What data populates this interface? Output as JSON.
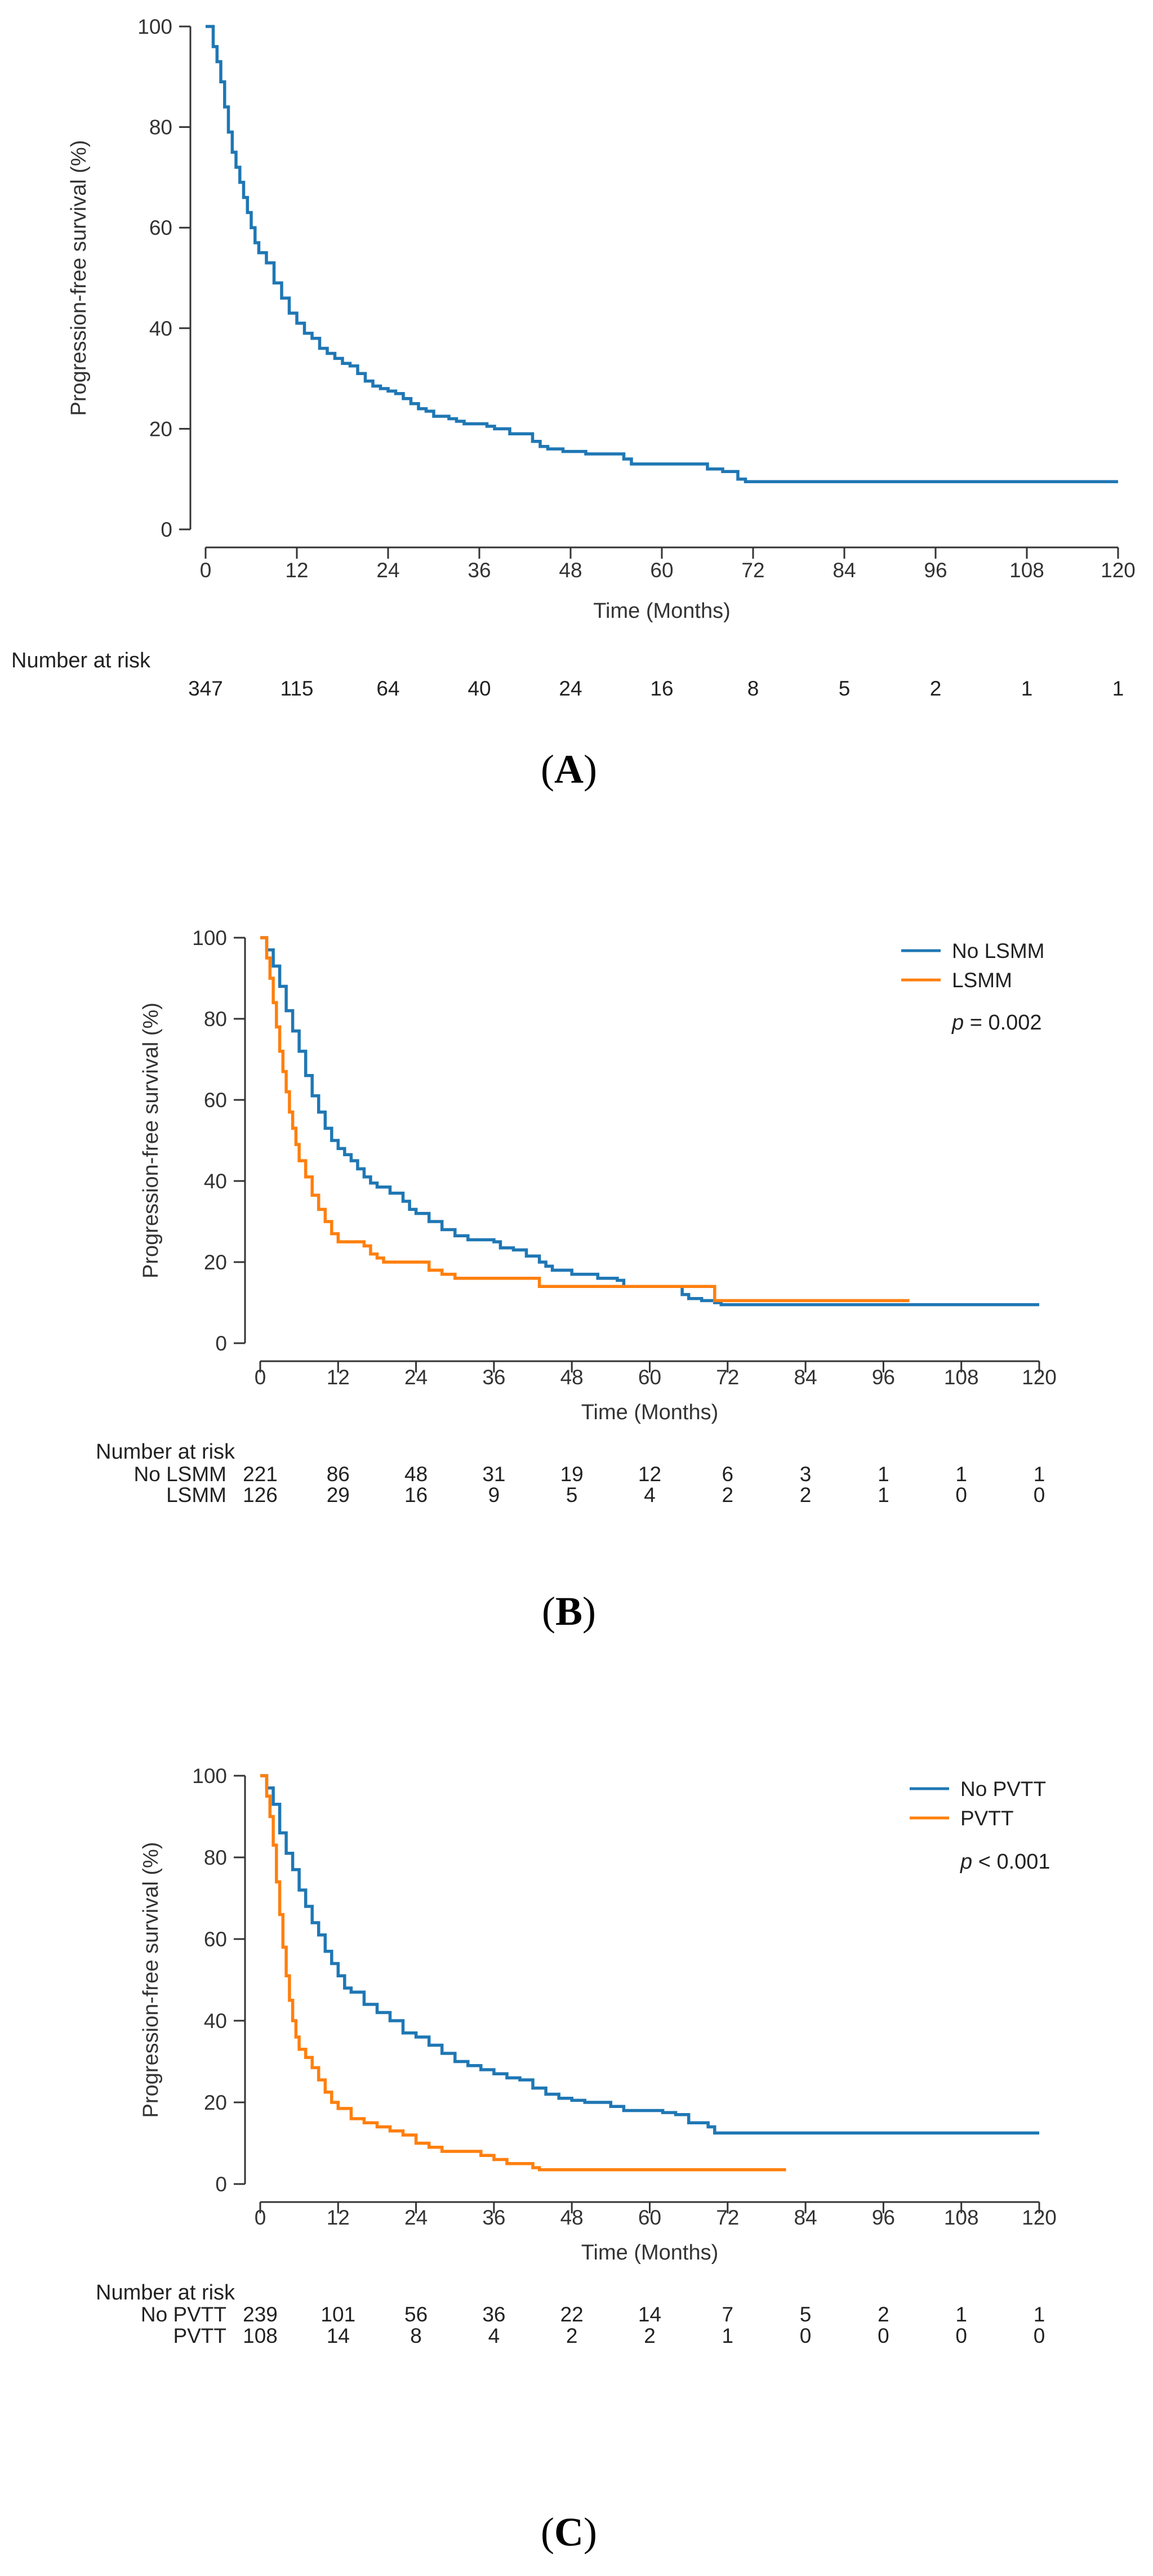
{
  "colors": {
    "series1": "#1f77b4",
    "series2": "#ff7f0e",
    "axis": "#333333"
  },
  "chart_data": [
    {
      "panel": "A",
      "type": "line",
      "xlabel": "Time (Months)",
      "ylabel": "Progression-free survival (%)",
      "xlim": [
        0,
        120
      ],
      "ylim": [
        0,
        100
      ],
      "xticks": [
        "0",
        "12",
        "24",
        "36",
        "48",
        "60",
        "72",
        "84",
        "96",
        "108",
        "120"
      ],
      "yticks": [
        "0",
        "20",
        "40",
        "60",
        "80",
        "100"
      ],
      "grid": false,
      "legend": [],
      "pvalue": {
        "label": "",
        "value": ""
      },
      "risk_table": {
        "title": "Number at risk",
        "times": [
          0,
          12,
          24,
          36,
          48,
          60,
          72,
          84,
          96,
          108,
          120
        ],
        "rows": [
          {
            "label": "",
            "values": [
              "347",
              "115",
              "64",
              "40",
              "24",
              "16",
              "8",
              "5",
              "2",
              "1",
              "1"
            ]
          }
        ]
      },
      "series": [
        {
          "name": "",
          "color": "#1f77b4",
          "points": [
            [
              0,
              100
            ],
            [
              0.5,
              100
            ],
            [
              1,
              96
            ],
            [
              1.5,
              93
            ],
            [
              2,
              89
            ],
            [
              2.5,
              84
            ],
            [
              3,
              79
            ],
            [
              3.5,
              75
            ],
            [
              4,
              72
            ],
            [
              4.5,
              69
            ],
            [
              5,
              66
            ],
            [
              5.5,
              63
            ],
            [
              6,
              60
            ],
            [
              6.5,
              57
            ],
            [
              7,
              55
            ],
            [
              8,
              53
            ],
            [
              9,
              49
            ],
            [
              10,
              46
            ],
            [
              11,
              43
            ],
            [
              12,
              41
            ],
            [
              13,
              39
            ],
            [
              14,
              38
            ],
            [
              15,
              36
            ],
            [
              16,
              35
            ],
            [
              17,
              34
            ],
            [
              18,
              33
            ],
            [
              19,
              32.5
            ],
            [
              20,
              31
            ],
            [
              21,
              29.5
            ],
            [
              22,
              28.5
            ],
            [
              23,
              28
            ],
            [
              24,
              27.5
            ],
            [
              25,
              27
            ],
            [
              26,
              26
            ],
            [
              27,
              25
            ],
            [
              28,
              24
            ],
            [
              29,
              23.5
            ],
            [
              30,
              22.5
            ],
            [
              32,
              22
            ],
            [
              33,
              21.5
            ],
            [
              34,
              21
            ],
            [
              36,
              21
            ],
            [
              37,
              20.5
            ],
            [
              38,
              20
            ],
            [
              40,
              19
            ],
            [
              42,
              19
            ],
            [
              43,
              17.5
            ],
            [
              44,
              16.5
            ],
            [
              45,
              16
            ],
            [
              47,
              15.5
            ],
            [
              48,
              15.5
            ],
            [
              50,
              15
            ],
            [
              53,
              15
            ],
            [
              55,
              14
            ],
            [
              56,
              13
            ],
            [
              65,
              13
            ],
            [
              66,
              12
            ],
            [
              68,
              11.5
            ],
            [
              70,
              10
            ],
            [
              71,
              9.5
            ],
            [
              120,
              9.5
            ]
          ]
        }
      ]
    },
    {
      "panel": "B",
      "type": "line",
      "xlabel": "Time (Months)",
      "ylabel": "Progression-free survival (%)",
      "xlim": [
        0,
        120
      ],
      "ylim": [
        0,
        100
      ],
      "xticks": [
        "0",
        "12",
        "24",
        "36",
        "48",
        "60",
        "72",
        "84",
        "96",
        "108",
        "120"
      ],
      "yticks": [
        "0",
        "20",
        "40",
        "60",
        "80",
        "100"
      ],
      "grid": false,
      "legend": [
        "No LSMM",
        "LSMM"
      ],
      "pvalue": {
        "label": "p",
        "value": " = 0.002"
      },
      "risk_table": {
        "title": "Number at risk",
        "times": [
          0,
          12,
          24,
          36,
          48,
          60,
          72,
          84,
          96,
          108,
          120
        ],
        "rows": [
          {
            "label": "No LSMM",
            "values": [
              "221",
              "86",
              "48",
              "31",
              "19",
              "12",
              "6",
              "3",
              "1",
              "1",
              "1"
            ]
          },
          {
            "label": "LSMM",
            "values": [
              "126",
              "29",
              "16",
              "9",
              "5",
              "4",
              "2",
              "2",
              "1",
              "0",
              "0"
            ]
          }
        ]
      },
      "series": [
        {
          "name": "No LSMM",
          "color": "#1f77b4",
          "points": [
            [
              0,
              100
            ],
            [
              0.7,
              100
            ],
            [
              1,
              97
            ],
            [
              2,
              93
            ],
            [
              3,
              88
            ],
            [
              4,
              82
            ],
            [
              5,
              77
            ],
            [
              6,
              72
            ],
            [
              7,
              66
            ],
            [
              8,
              61
            ],
            [
              9,
              57
            ],
            [
              10,
              53
            ],
            [
              11,
              50
            ],
            [
              12,
              48
            ],
            [
              13,
              46.5
            ],
            [
              14,
              45
            ],
            [
              15,
              43
            ],
            [
              16,
              41
            ],
            [
              17,
              39.5
            ],
            [
              18,
              38.5
            ],
            [
              20,
              37
            ],
            [
              22,
              35
            ],
            [
              23,
              33
            ],
            [
              24,
              32
            ],
            [
              26,
              30
            ],
            [
              28,
              28
            ],
            [
              30,
              26.5
            ],
            [
              32,
              25.5
            ],
            [
              36,
              25
            ],
            [
              37,
              23.5
            ],
            [
              39,
              23
            ],
            [
              41,
              21.5
            ],
            [
              43,
              20
            ],
            [
              44,
              19
            ],
            [
              45,
              18
            ],
            [
              48,
              17
            ],
            [
              52,
              16
            ],
            [
              55,
              15.5
            ],
            [
              56,
              14
            ],
            [
              64,
              14
            ],
            [
              65,
              12
            ],
            [
              66,
              11
            ],
            [
              68,
              10.5
            ],
            [
              70,
              10
            ],
            [
              71,
              9.5
            ],
            [
              120,
              9.5
            ]
          ]
        },
        {
          "name": "LSMM",
          "color": "#ff7f0e",
          "points": [
            [
              0,
              100
            ],
            [
              0.5,
              100
            ],
            [
              1,
              95
            ],
            [
              1.5,
              90
            ],
            [
              2,
              84
            ],
            [
              2.5,
              78
            ],
            [
              3,
              72
            ],
            [
              3.5,
              67
            ],
            [
              4,
              62
            ],
            [
              4.5,
              57
            ],
            [
              5,
              53
            ],
            [
              5.5,
              49
            ],
            [
              6,
              45
            ],
            [
              7,
              41
            ],
            [
              8,
              36.5
            ],
            [
              9,
              33
            ],
            [
              10,
              30
            ],
            [
              11,
              27
            ],
            [
              12,
              25
            ],
            [
              16,
              24
            ],
            [
              17,
              22
            ],
            [
              18,
              21
            ],
            [
              19,
              20
            ],
            [
              25,
              20
            ],
            [
              26,
              18
            ],
            [
              28,
              17
            ],
            [
              30,
              16
            ],
            [
              42,
              16
            ],
            [
              43,
              14
            ],
            [
              69,
              14
            ],
            [
              70,
              10.5
            ],
            [
              100,
              10.5
            ]
          ]
        }
      ]
    },
    {
      "panel": "C",
      "type": "line",
      "xlabel": "Time (Months)",
      "ylabel": "Progression-free survival (%)",
      "xlim": [
        0,
        120
      ],
      "ylim": [
        0,
        100
      ],
      "xticks": [
        "0",
        "12",
        "24",
        "36",
        "48",
        "60",
        "72",
        "84",
        "96",
        "108",
        "120"
      ],
      "yticks": [
        "0",
        "20",
        "40",
        "60",
        "80",
        "100"
      ],
      "grid": false,
      "legend": [
        "No PVTT",
        "PVTT"
      ],
      "pvalue": {
        "label": "p",
        "value": " < 0.001"
      },
      "risk_table": {
        "title": "Number at risk",
        "times": [
          0,
          12,
          24,
          36,
          48,
          60,
          72,
          84,
          96,
          108,
          120
        ],
        "rows": [
          {
            "label": "No PVTT",
            "values": [
              "239",
              "101",
              "56",
              "36",
              "22",
              "14",
              "7",
              "5",
              "2",
              "1",
              "1"
            ]
          },
          {
            "label": "PVTT",
            "values": [
              "108",
              "14",
              "8",
              "4",
              "2",
              "2",
              "1",
              "0",
              "0",
              "0",
              "0"
            ]
          }
        ]
      },
      "series": [
        {
          "name": "No PVTT",
          "color": "#1f77b4",
          "points": [
            [
              0,
              100
            ],
            [
              0.7,
              100
            ],
            [
              1,
              97
            ],
            [
              2,
              93
            ],
            [
              3,
              86
            ],
            [
              4,
              81
            ],
            [
              5,
              77
            ],
            [
              6,
              72
            ],
            [
              7,
              68
            ],
            [
              8,
              64
            ],
            [
              9,
              61
            ],
            [
              10,
              57
            ],
            [
              11,
              54
            ],
            [
              12,
              51
            ],
            [
              13,
              48
            ],
            [
              14,
              47
            ],
            [
              16,
              44
            ],
            [
              18,
              42
            ],
            [
              20,
              40
            ],
            [
              22,
              37
            ],
            [
              24,
              36
            ],
            [
              26,
              34
            ],
            [
              28,
              32
            ],
            [
              30,
              30
            ],
            [
              32,
              29
            ],
            [
              34,
              28
            ],
            [
              36,
              27
            ],
            [
              38,
              26
            ],
            [
              40,
              25.5
            ],
            [
              42,
              23.5
            ],
            [
              44,
              22
            ],
            [
              46,
              21
            ],
            [
              48,
              20.5
            ],
            [
              50,
              20
            ],
            [
              54,
              19
            ],
            [
              56,
              18
            ],
            [
              62,
              17.5
            ],
            [
              64,
              17
            ],
            [
              66,
              15
            ],
            [
              69,
              14
            ],
            [
              70,
              12.5
            ],
            [
              120,
              12.5
            ]
          ]
        },
        {
          "name": "PVTT",
          "color": "#ff7f0e",
          "points": [
            [
              0,
              100
            ],
            [
              0.5,
              100
            ],
            [
              1,
              95
            ],
            [
              1.5,
              90
            ],
            [
              2,
              83
            ],
            [
              2.5,
              74
            ],
            [
              3,
              66
            ],
            [
              3.5,
              58
            ],
            [
              4,
              51
            ],
            [
              4.5,
              45
            ],
            [
              5,
              40
            ],
            [
              5.5,
              36
            ],
            [
              6,
              33
            ],
            [
              7,
              31
            ],
            [
              8,
              28.5
            ],
            [
              9,
              25.5
            ],
            [
              10,
              22.5
            ],
            [
              11,
              20
            ],
            [
              12,
              18.5
            ],
            [
              14,
              16
            ],
            [
              16,
              15
            ],
            [
              18,
              14
            ],
            [
              20,
              13
            ],
            [
              22,
              12
            ],
            [
              24,
              10
            ],
            [
              26,
              9
            ],
            [
              28,
              8
            ],
            [
              34,
              7
            ],
            [
              36,
              6
            ],
            [
              38,
              5
            ],
            [
              42,
              4
            ],
            [
              43,
              3.5
            ],
            [
              81,
              3.5
            ]
          ]
        }
      ]
    }
  ]
}
